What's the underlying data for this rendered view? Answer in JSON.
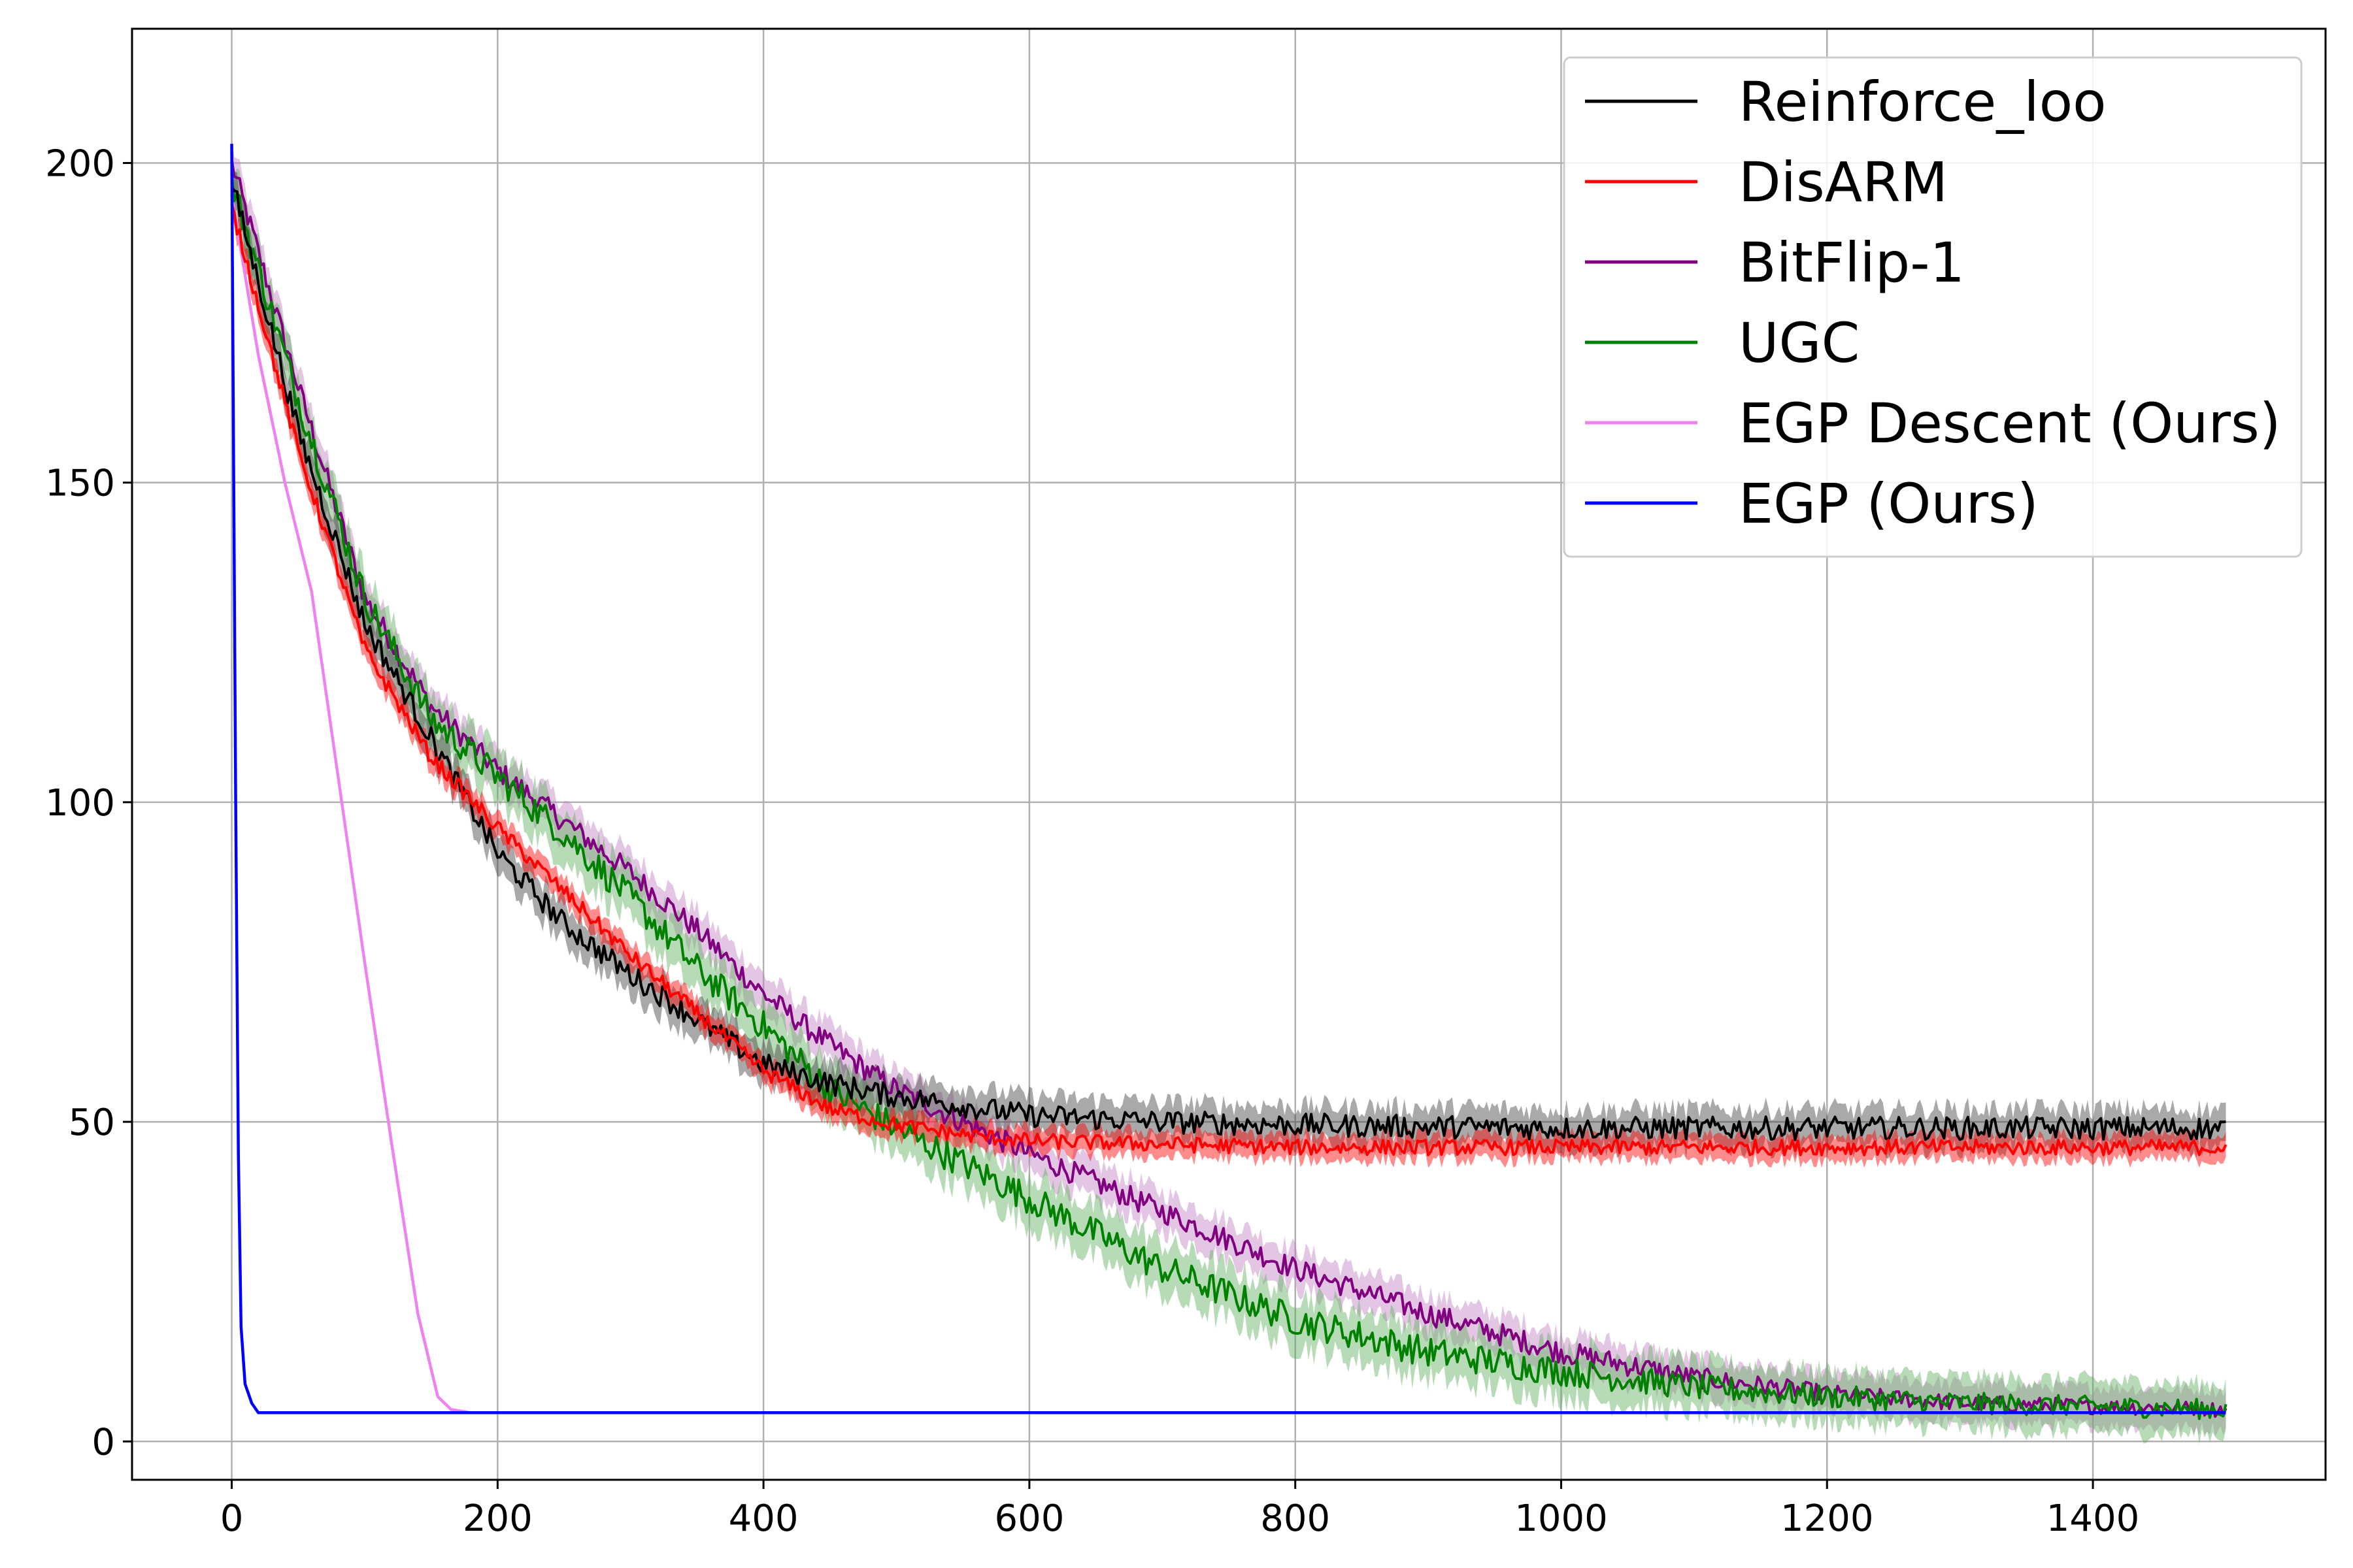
{
  "chart_data": {
    "type": "line",
    "title": "",
    "xlabel": "",
    "ylabel": "",
    "xlim": [
      -75,
      1575
    ],
    "ylim": [
      -6,
      221
    ],
    "xticks": [
      0,
      200,
      400,
      600,
      800,
      1000,
      1200,
      1400
    ],
    "yticks": [
      0,
      50,
      100,
      150,
      200
    ],
    "grid": true,
    "legend_position": "top-right",
    "series": [
      {
        "name": "Reinforce_loo",
        "color": "#000000",
        "band_color": "#404040",
        "x": [
          0,
          50,
          100,
          150,
          200,
          250,
          300,
          350,
          400,
          450,
          500,
          550,
          600,
          700,
          800,
          1000,
          1200,
          1500
        ],
        "values": [
          197,
          158,
          128,
          110,
          92,
          81,
          73,
          66,
          59,
          56,
          54,
          52.5,
          51,
          50,
          49.5,
          49,
          49,
          49
        ],
        "band": 3
      },
      {
        "name": "DisARM",
        "color": "#ff0000",
        "band_color": "#ff0000",
        "x": [
          0,
          50,
          100,
          150,
          200,
          250,
          300,
          350,
          400,
          450,
          500,
          550,
          600,
          700,
          800,
          1000,
          1200,
          1500
        ],
        "values": [
          193,
          155,
          124,
          107,
          96,
          86,
          76,
          67,
          58,
          52,
          49.5,
          48,
          47,
          46.5,
          46,
          46,
          46,
          46
        ],
        "band": 2
      },
      {
        "name": "BitFlip-1",
        "color": "#800080",
        "band_color": "#c080c0",
        "x": [
          0,
          50,
          100,
          150,
          200,
          250,
          300,
          350,
          400,
          450,
          500,
          600,
          700,
          800,
          900,
          1000,
          1100,
          1200,
          1300,
          1500
        ],
        "values": [
          200,
          165,
          132,
          115,
          105,
          97,
          89,
          80,
          70,
          62,
          55,
          45,
          36,
          27,
          20,
          14,
          10,
          7.5,
          6,
          5
        ],
        "band": 3
      },
      {
        "name": "UGC",
        "color": "#008000",
        "band_color": "#60b060",
        "x": [
          0,
          50,
          100,
          150,
          200,
          250,
          300,
          350,
          400,
          450,
          500,
          600,
          700,
          800,
          900,
          1000,
          1100,
          1200,
          1300,
          1500
        ],
        "values": [
          197,
          163,
          132,
          113,
          104,
          95,
          85,
          74,
          65,
          55,
          49,
          38,
          27,
          19,
          14,
          11,
          8.5,
          7,
          6,
          5
        ],
        "band": 4
      },
      {
        "name": "EGP Descent (Ours)",
        "color": "#ee82ee",
        "band_color": "",
        "x": [
          0,
          20,
          40,
          60,
          80,
          100,
          120,
          140,
          155,
          165,
          180,
          200,
          250,
          1500
        ],
        "values": [
          195,
          170,
          150,
          133,
          104,
          75,
          47,
          20,
          7,
          5,
          4.5,
          4.5,
          4.5,
          4.5
        ],
        "band": 0
      },
      {
        "name": "EGP (Ours)",
        "color": "#0000ff",
        "band_color": "",
        "x": [
          0,
          3,
          5,
          7,
          10,
          15,
          20,
          30,
          1500
        ],
        "values": [
          203,
          100,
          45,
          18,
          9,
          6,
          4.5,
          4.5,
          4.5
        ],
        "band": 0
      }
    ]
  }
}
